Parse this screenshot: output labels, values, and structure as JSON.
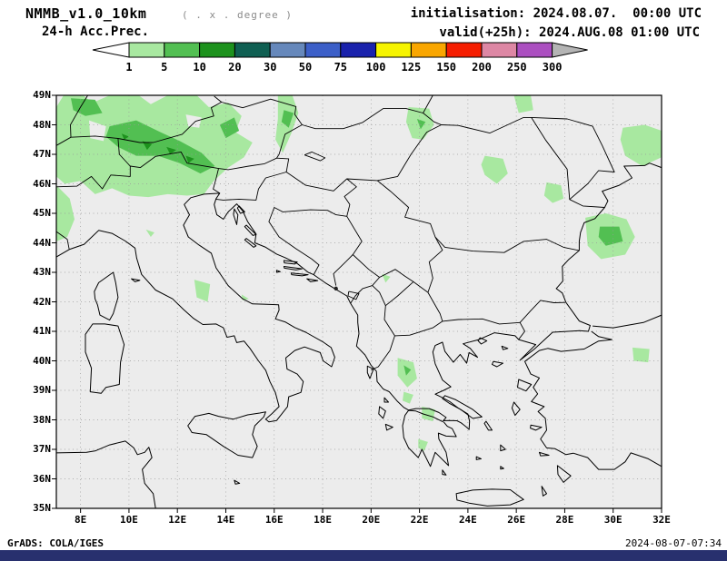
{
  "header": {
    "model": "NMMB_v1.0_10km",
    "resolution_note": "( . x . degree )",
    "initialisation": "initialisation: 2024.08.07.  00:00 UTC",
    "product": "24-h Acc.Prec.",
    "valid": "valid(+25h): 2024.AUG.08 01:00 UTC"
  },
  "colorbar": {
    "ticks": [
      "1",
      "5",
      "10",
      "20",
      "30",
      "50",
      "75",
      "100",
      "125",
      "150",
      "200",
      "250",
      "300"
    ],
    "segment_colors": [
      "#a8e8a0",
      "#52bf52",
      "#1d921d",
      "#0f5f52",
      "#6688bb",
      "#3c5fc8",
      "#1a22ac",
      "#f6f400",
      "#f9a600",
      "#f51d00",
      "#dd87a4",
      "#ab4fc0"
    ],
    "below_min_color": "#ffffff",
    "above_max_color": "#b4b4b4"
  },
  "map": {
    "background": "#ececec",
    "lat_ticks": [
      "49N",
      "48N",
      "47N",
      "46N",
      "45N",
      "44N",
      "43N",
      "42N",
      "41N",
      "40N",
      "39N",
      "38N",
      "37N",
      "36N",
      "35N"
    ],
    "lon_ticks": [
      "8E",
      "10E",
      "12E",
      "14E",
      "16E",
      "18E",
      "20E",
      "22E",
      "24E",
      "26E",
      "28E",
      "30E",
      "32E"
    ]
  },
  "footer": {
    "left": "GrADS: COLA/IGES",
    "right": "2024-08-07-07:34"
  },
  "chart_data": {
    "type": "heatmap",
    "subtype": "geographic precipitation shading",
    "title": "NMMB_v1.0_10km 24-h Acc.Prec.",
    "initialisation": "2024.08.07. 00:00 UTC",
    "valid": "valid(+25h) 2024.AUG.08 01:00 UTC",
    "projection": "lat-lon",
    "lon_range_deg_e": [
      7,
      32
    ],
    "lat_range_deg_n": [
      35,
      49
    ],
    "lon_tick_step_deg": 2,
    "lat_tick_step_deg": 1,
    "grid": "dotted",
    "scale_levels_mm": [
      1,
      5,
      10,
      20,
      30,
      50,
      75,
      100,
      125,
      150,
      200,
      250,
      300
    ],
    "shaded_areas_visible": [
      {
        "level_mm": "1-5",
        "color": "#a8e8a0",
        "areas": [
          "large area over Alps / Austria / S Germany / N Italy edge (7-15E, 45.5-49N)",
          "streak near 16.5E from top edge to 47N",
          "NE Hungary / E Slovakia (21.5-22.5E, 47.5-48.5N)",
          "C Romania Carpathians (24.7-25.6E, 46-47N)",
          "E Romania (27.2-28E, 45.4-46N)",
          "NE corner Ukraine (30.3-32E, 46.6-48N)",
          "W Black Sea / Danube delta offshore (29-31E, 43.5-45N)",
          "N Turkey (30.8-31.5E, 40-40.5N)",
          "Pindus range Greece (21-22E, 37-40N)",
          "Gulf of Corinth area (22-22.7E, 38-38.4N)",
          "C Apennines Italy (12.7-13.4E, 42-42.7N)",
          "small spots W Balkans"
        ]
      },
      {
        "level_mm": "5-10",
        "color": "#52bf52",
        "areas": [
          "Alpine core diagonal band (9-13.5E, 46.4-48.1N)",
          "SW Germany patch",
          "core of W Black Sea blob (29.4-30.4E, 44-44.6N)",
          "small cores NE Hungary and N Greece"
        ]
      },
      {
        "level_mm": "10-20",
        "color": "#1d921d",
        "areas": [
          "small spots in Tyrol/Alps (10.5-12.7E, 46.7-47.5N)"
        ]
      }
    ]
  }
}
